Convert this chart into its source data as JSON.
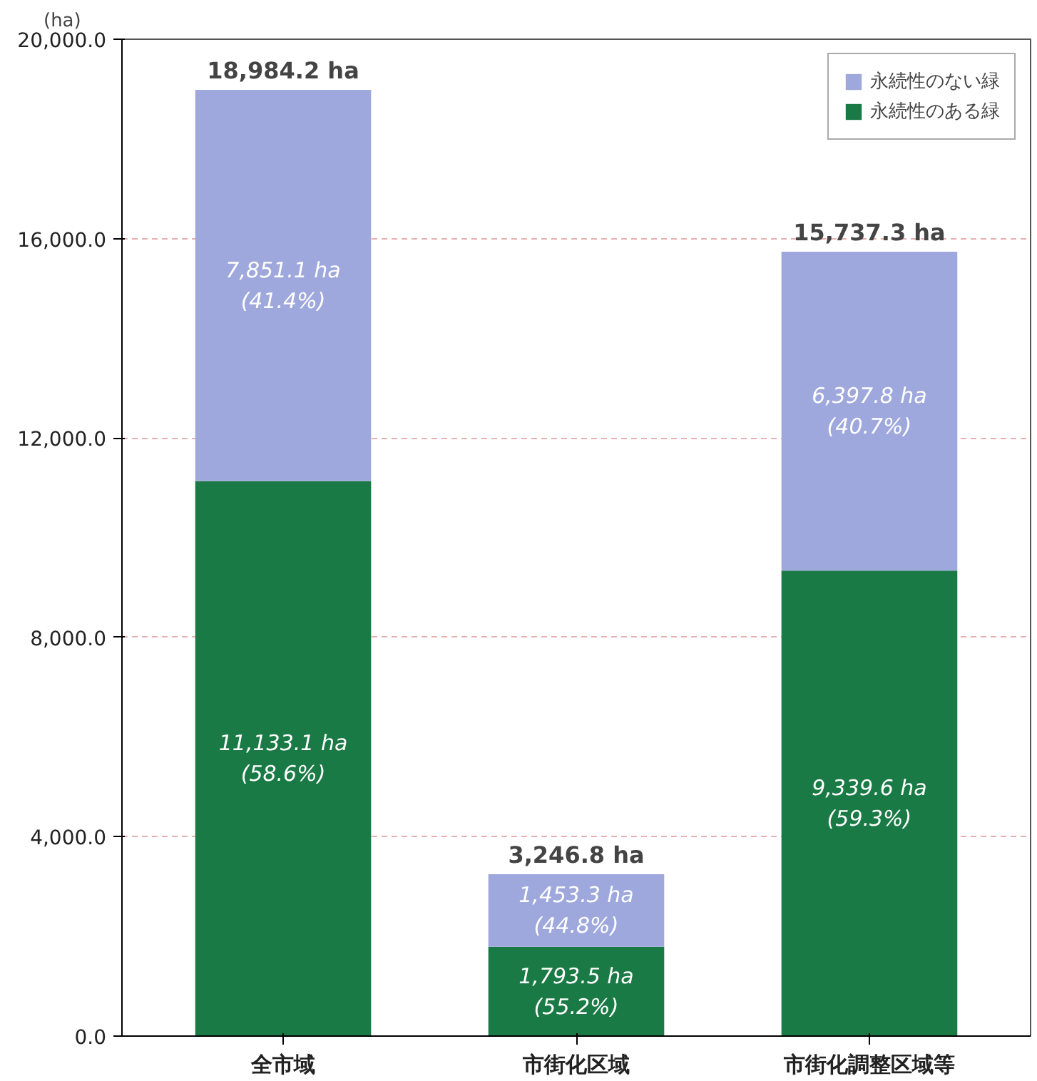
{
  "chart_data": {
    "type": "bar",
    "stacked": true,
    "ylabel": "(ha)",
    "categories": [
      "全市域",
      "市街化区域",
      "市街化調整区域等"
    ],
    "series": [
      {
        "name": "永続性のある緑",
        "color": "#1a7a45",
        "values": [
          11133.1,
          1793.5,
          9339.6
        ],
        "value_labels": [
          "11,133.1 ha\n(58.6%)",
          "1,793.5 ha\n(55.2%)",
          "9,339.6 ha\n(59.3%)"
        ]
      },
      {
        "name": "永続性のない緑",
        "color": "#9fa8dc",
        "values": [
          7851.1,
          1453.3,
          6397.8
        ],
        "value_labels": [
          "7,851.1 ha\n(41.4%)",
          "1,453.3 ha\n(44.8%)",
          "6,397.8 ha\n(40.7%)"
        ]
      }
    ],
    "totals": [
      "18,984.2 ha",
      "3,246.8 ha",
      "15,737.3 ha"
    ],
    "ylim": [
      0,
      20000
    ],
    "yticks": [
      {
        "value": 0,
        "label": "0.0"
      },
      {
        "value": 4000,
        "label": "4,000.0"
      },
      {
        "value": 8000,
        "label": "8,000.0"
      },
      {
        "value": 12000,
        "label": "12,000.0"
      },
      {
        "value": 16000,
        "label": "16,000.0"
      },
      {
        "value": 20000,
        "label": "20,000.0"
      }
    ],
    "grid": "y",
    "legend": "top right"
  }
}
